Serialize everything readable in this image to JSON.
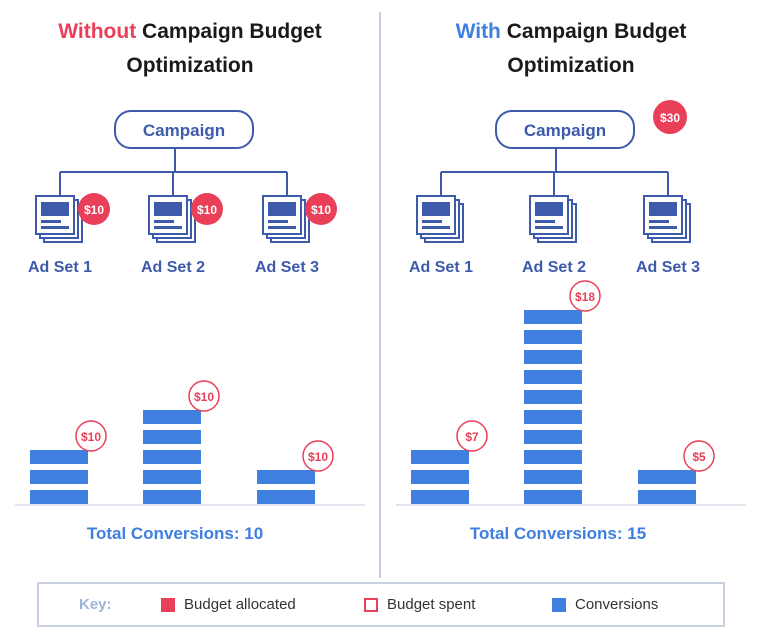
{
  "colors": {
    "red": "#ea3f58",
    "blue": "#3f7fe0",
    "navy": "#3d5aab",
    "axis": "#c0c8da"
  },
  "left": {
    "title_accent": "Without",
    "title_rest_1": " Campaign Budget",
    "title_line_2": "Optimization",
    "campaign_label": "Campaign",
    "campaign_badge": "",
    "ad_sets": [
      {
        "label": "Ad Set 1",
        "badge": "$10"
      },
      {
        "label": "Ad Set 2",
        "badge": "$10"
      },
      {
        "label": "Ad Set 3",
        "badge": "$10"
      }
    ],
    "bars": [
      {
        "conversions": 3,
        "spent": "$10"
      },
      {
        "conversions": 5,
        "spent": "$10"
      },
      {
        "conversions": 2,
        "spent": "$10"
      }
    ],
    "total": "Total Conversions: 10"
  },
  "right": {
    "title_accent": "With",
    "title_rest_1": " Campaign Budget",
    "title_line_2": "Optimization",
    "campaign_label": "Campaign",
    "campaign_badge": "$30",
    "ad_sets": [
      {
        "label": "Ad Set 1",
        "badge": ""
      },
      {
        "label": "Ad Set 2",
        "badge": ""
      },
      {
        "label": "Ad Set 3",
        "badge": ""
      }
    ],
    "bars": [
      {
        "conversions": 3,
        "spent": "$7"
      },
      {
        "conversions": 10,
        "spent": "$18"
      },
      {
        "conversions": 2,
        "spent": "$5"
      }
    ],
    "total": "Total Conversions: 15"
  },
  "key": {
    "label": "Key:",
    "items": [
      "Budget allocated",
      "Budget spent",
      "Conversions"
    ]
  }
}
